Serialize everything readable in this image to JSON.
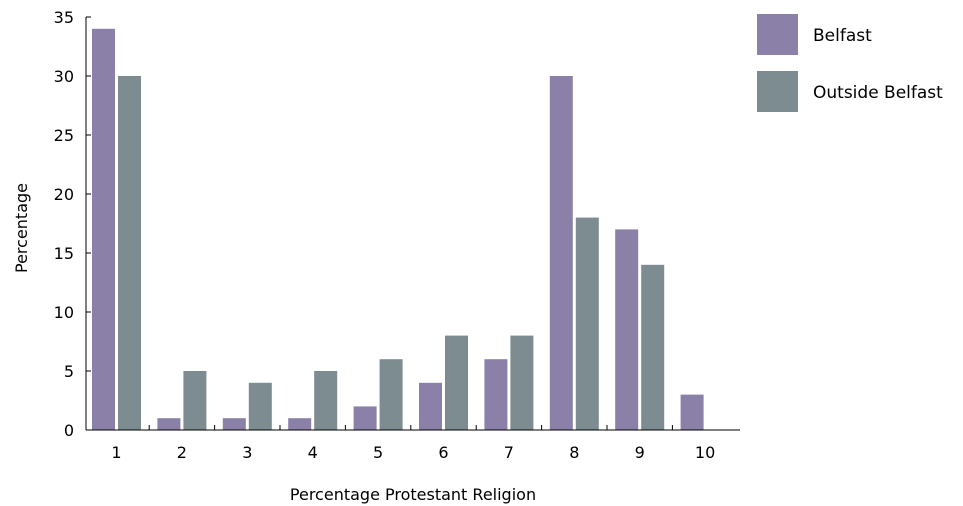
{
  "chart_data": {
    "type": "bar",
    "xlabel": "Percentage Protestant Religion",
    "ylabel": "Percentage",
    "categories": [
      "1",
      "2",
      "3",
      "4",
      "5",
      "6",
      "7",
      "8",
      "9",
      "10"
    ],
    "ylim": [
      0,
      35
    ],
    "yticks": [
      0,
      5,
      10,
      15,
      20,
      25,
      30,
      35
    ],
    "grid": false,
    "legend_position": "top-right",
    "series": [
      {
        "name": "Belfast",
        "color": "#8a80a8",
        "values": [
          34,
          1,
          1,
          1,
          2,
          4,
          6,
          30,
          17,
          3
        ]
      },
      {
        "name": "Outside Belfast",
        "color": "#7d8c90",
        "values": [
          30,
          5,
          4,
          5,
          6,
          8,
          8,
          18,
          14,
          0
        ]
      }
    ]
  }
}
